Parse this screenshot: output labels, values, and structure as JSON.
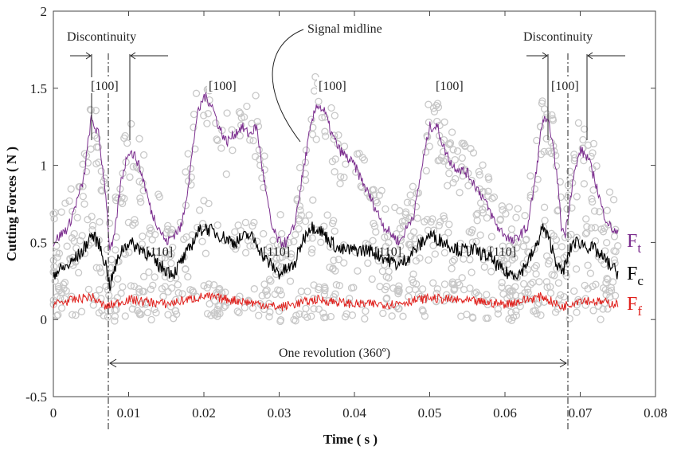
{
  "chart_data": {
    "type": "line",
    "xlabel": "Time ( s )",
    "ylabel": "Cutting Forces ( N )",
    "xlim": [
      0,
      0.08
    ],
    "ylim": [
      -0.5,
      2
    ],
    "xticks": [
      "0",
      "0.01",
      "0.02",
      "0.03",
      "0.04",
      "0.05",
      "0.06",
      "0.07",
      "0.08"
    ],
    "yticks": [
      "-0.5",
      "0",
      "0.5",
      "1",
      "1.5",
      "2"
    ],
    "grid": false,
    "series": [
      {
        "name": "Ft",
        "label_main": "F",
        "label_sub": "t",
        "color": "#7b2d8e",
        "x": [
          0,
          0.002,
          0.004,
          0.005,
          0.006,
          0.007,
          0.0075,
          0.008,
          0.009,
          0.01,
          0.011,
          0.012,
          0.013,
          0.015,
          0.017,
          0.018,
          0.019,
          0.02,
          0.021,
          0.022,
          0.023,
          0.024,
          0.025,
          0.026,
          0.027,
          0.028,
          0.029,
          0.03,
          0.031,
          0.032,
          0.033,
          0.034,
          0.035,
          0.036,
          0.037,
          0.038,
          0.039,
          0.04,
          0.042,
          0.044,
          0.046,
          0.048,
          0.049,
          0.05,
          0.051,
          0.052,
          0.053,
          0.055,
          0.057,
          0.059,
          0.061,
          0.063,
          0.064,
          0.065,
          0.066,
          0.067,
          0.0675,
          0.068,
          0.069,
          0.07,
          0.071,
          0.072,
          0.073,
          0.074,
          0.075
        ],
        "y": [
          0.5,
          0.6,
          0.9,
          1.3,
          1.2,
          0.8,
          0.45,
          0.5,
          0.9,
          1.1,
          1.05,
          0.9,
          0.7,
          0.5,
          0.6,
          0.9,
          1.3,
          1.45,
          1.4,
          1.25,
          1.15,
          1.2,
          1.25,
          1.2,
          1.25,
          0.9,
          0.6,
          0.5,
          0.5,
          0.6,
          0.9,
          1.2,
          1.4,
          1.35,
          1.2,
          1.1,
          1.05,
          1.0,
          0.8,
          0.6,
          0.5,
          0.7,
          1.0,
          1.25,
          1.25,
          1.1,
          1.0,
          0.95,
          0.8,
          0.6,
          0.5,
          0.6,
          0.9,
          1.3,
          1.25,
          0.9,
          0.6,
          0.55,
          0.9,
          1.1,
          1.05,
          0.9,
          0.7,
          0.6,
          0.55
        ]
      },
      {
        "name": "Fc",
        "label_main": "F",
        "label_sub": "c",
        "color": "#000000",
        "x": [
          0,
          0.002,
          0.004,
          0.005,
          0.006,
          0.007,
          0.0075,
          0.008,
          0.009,
          0.01,
          0.012,
          0.014,
          0.016,
          0.018,
          0.019,
          0.02,
          0.022,
          0.024,
          0.026,
          0.027,
          0.028,
          0.03,
          0.032,
          0.033,
          0.034,
          0.035,
          0.036,
          0.038,
          0.04,
          0.042,
          0.044,
          0.046,
          0.048,
          0.05,
          0.052,
          0.054,
          0.056,
          0.058,
          0.06,
          0.062,
          0.064,
          0.065,
          0.066,
          0.067,
          0.0675,
          0.068,
          0.069,
          0.07,
          0.072,
          0.074,
          0.075
        ],
        "y": [
          0.3,
          0.35,
          0.45,
          0.55,
          0.5,
          0.35,
          0.22,
          0.3,
          0.45,
          0.5,
          0.45,
          0.35,
          0.3,
          0.45,
          0.55,
          0.6,
          0.55,
          0.5,
          0.55,
          0.5,
          0.4,
          0.3,
          0.35,
          0.5,
          0.6,
          0.6,
          0.55,
          0.45,
          0.45,
          0.45,
          0.4,
          0.35,
          0.45,
          0.55,
          0.5,
          0.45,
          0.45,
          0.4,
          0.3,
          0.3,
          0.45,
          0.6,
          0.5,
          0.35,
          0.3,
          0.35,
          0.5,
          0.5,
          0.45,
          0.35,
          0.3
        ]
      },
      {
        "name": "Ff",
        "label_main": "F",
        "label_sub": "f",
        "color": "#e0201c",
        "x": [
          0,
          0.005,
          0.007,
          0.008,
          0.01,
          0.015,
          0.02,
          0.025,
          0.03,
          0.035,
          0.04,
          0.045,
          0.05,
          0.055,
          0.06,
          0.065,
          0.0675,
          0.07,
          0.075
        ],
        "y": [
          0.1,
          0.15,
          0.08,
          0.1,
          0.13,
          0.1,
          0.15,
          0.12,
          0.08,
          0.13,
          0.1,
          0.1,
          0.14,
          0.12,
          0.1,
          0.15,
          0.08,
          0.13,
          0.1
        ]
      }
    ],
    "scatter_color": "#c8c8c8",
    "annotations": {
      "discontinuity_left": "Discontinuity",
      "discontinuity_right": "Discontinuity",
      "signal_midline": "Signal midline",
      "one_revolution": "One revolution (360º)",
      "labels_100": [
        "[100]",
        "[100]",
        "[100]",
        "[100]",
        "[100]"
      ],
      "labels_110": [
        "[110]",
        "[110]",
        "[110]",
        "[110]"
      ]
    }
  }
}
